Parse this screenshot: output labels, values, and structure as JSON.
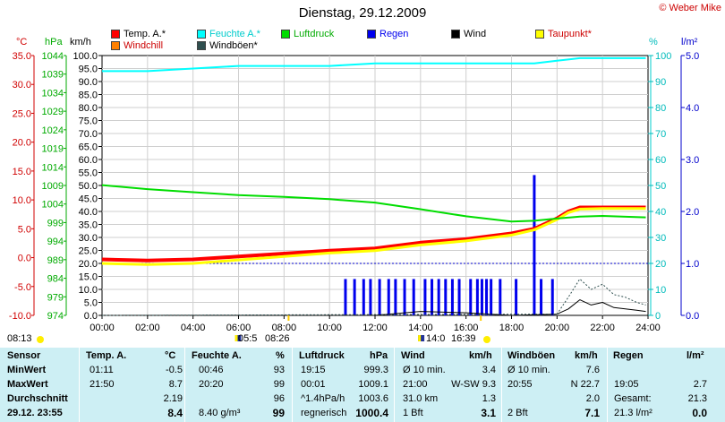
{
  "header": {
    "title": "Dienstag, 29.12.2009",
    "credit": "© Weber Mike"
  },
  "legend": [
    {
      "label": "Temp. A.*",
      "color": "#ff0000"
    },
    {
      "label": "Feuchte A.*",
      "color": "#00ffff"
    },
    {
      "label": "Luftdruck",
      "color": "#00dd00"
    },
    {
      "label": "Regen",
      "color": "#0000ee"
    },
    {
      "label": "Wind",
      "color": "#000000"
    },
    {
      "label": "Taupunkt*",
      "color": "#ffff00"
    },
    {
      "label": "Windchill",
      "color": "#ff8000"
    },
    {
      "label": "Windböen*",
      "color": "#2f4f4f"
    }
  ],
  "units": {
    "temp": "°C",
    "press": "hPa",
    "wind": "km/h",
    "hum": "%",
    "rain": "l/m²"
  },
  "markers": {
    "sunrise": "08:13",
    "sunset": "16:39",
    "moon1": "05:5",
    "moon2": "08:26",
    "moon3": "14:0"
  },
  "chart_data": {
    "type": "line",
    "x_range": [
      "00:00",
      "24:00"
    ],
    "x_ticks": [
      "00:00",
      "02:00",
      "04:00",
      "06:00",
      "08:00",
      "10:00",
      "12:00",
      "14:00",
      "16:00",
      "18:00",
      "20:00",
      "22:00",
      "24:00"
    ],
    "axes": {
      "temp_c": {
        "range": [
          -10,
          35
        ],
        "ticks": [
          "35.0",
          "30.0",
          "25.0",
          "20.0",
          "15.0",
          "10.0",
          "5.0",
          "0.0",
          "-5.0",
          "-10.0"
        ]
      },
      "pressure_hpa": {
        "range": [
          974,
          1044
        ],
        "ticks": [
          "1044",
          "1039",
          "1034",
          "1029",
          "1024",
          "1019",
          "1014",
          "1009",
          "1004",
          "999",
          "994",
          "989",
          "984",
          "979",
          "974"
        ]
      },
      "wind_kmh": {
        "range": [
          0,
          100
        ],
        "ticks": [
          "100.0",
          "95.0",
          "90.0",
          "85.0",
          "80.0",
          "75.0",
          "70.0",
          "65.0",
          "60.0",
          "55.0",
          "50.0",
          "45.0",
          "40.0",
          "35.0",
          "30.0",
          "25.0",
          "20.0",
          "15.0",
          "10.0",
          "5.0",
          "0.0"
        ]
      },
      "humidity_pct": {
        "range": [
          0,
          100
        ],
        "ticks": [
          "100",
          "90",
          "80",
          "70",
          "60",
          "50",
          "40",
          "30",
          "20",
          "10",
          "0"
        ]
      },
      "rain_lm2": {
        "range": [
          0,
          5
        ],
        "ticks": [
          "5.0",
          "4.0",
          "3.0",
          "2.0",
          "1.0",
          "0.0"
        ]
      }
    },
    "series": [
      {
        "name": "Temp. A.*",
        "axis": "temp_c",
        "color": "#ff0000",
        "x": [
          0,
          2,
          4,
          6,
          8,
          10,
          12,
          14,
          16,
          18,
          19,
          20,
          20.5,
          21,
          21.5,
          22,
          23,
          23.9
        ],
        "values": [
          -0.3,
          -0.5,
          -0.3,
          0.2,
          0.7,
          1.2,
          1.6,
          2.6,
          3.2,
          4.2,
          5.0,
          6.8,
          8.0,
          8.7,
          8.7,
          8.7,
          8.7,
          8.7
        ]
      },
      {
        "name": "Taupunkt*",
        "axis": "temp_c",
        "color": "#ffff00",
        "x": [
          0,
          2,
          4,
          6,
          8,
          10,
          12,
          14,
          16,
          18,
          19,
          20,
          20.5,
          21,
          22,
          23,
          23.9
        ],
        "values": [
          -1.0,
          -1.2,
          -1.0,
          -0.4,
          0.2,
          0.8,
          1.2,
          2.2,
          2.9,
          3.9,
          4.8,
          6.6,
          7.8,
          8.4,
          8.5,
          8.5,
          8.5
        ]
      },
      {
        "name": "Feuchte A.*",
        "axis": "humidity_pct",
        "color": "#00ffff",
        "x": [
          0,
          2,
          4,
          6,
          8,
          10,
          12,
          14,
          16,
          18,
          19,
          20,
          21,
          22,
          23.9
        ],
        "values": [
          94,
          94,
          95,
          96,
          96,
          96,
          97,
          97,
          97,
          97,
          97,
          98,
          99,
          99,
          99
        ]
      },
      {
        "name": "Luftdruck",
        "axis": "pressure_hpa",
        "color": "#00dd00",
        "x": [
          0,
          2,
          4,
          6,
          8,
          10,
          12,
          14,
          16,
          18,
          19,
          20,
          21,
          22,
          23.9
        ],
        "values": [
          1009.1,
          1008.0,
          1007.2,
          1006.4,
          1005.9,
          1005.3,
          1004.4,
          1002.6,
          1000.7,
          999.3,
          999.5,
          1000.1,
          1000.6,
          1000.8,
          1000.4
        ]
      },
      {
        "name": "Wind",
        "axis": "wind_kmh",
        "color": "#000000",
        "x": [
          0,
          12,
          14,
          16,
          18,
          20,
          20.5,
          21,
          21.5,
          22,
          22.5,
          23,
          23.5,
          23.9
        ],
        "values": [
          0,
          0,
          1.5,
          1.0,
          0,
          0.5,
          2.5,
          6,
          4,
          5,
          3,
          2.5,
          2,
          1.5
        ]
      },
      {
        "name": "Windböen*",
        "axis": "wind_kmh",
        "color": "#2f4f4f",
        "x": [
          0,
          20,
          20.5,
          21,
          21.5,
          22,
          22.5,
          23,
          23.5,
          23.9
        ],
        "values": [
          0,
          0.5,
          7,
          14,
          10,
          12,
          8,
          7,
          5,
          4
        ]
      },
      {
        "name": "Regen",
        "axis": "rain_lm2",
        "color": "#0000ee",
        "kind": "bars",
        "x": [
          10.7,
          11.1,
          11.5,
          11.8,
          12.2,
          12.6,
          12.9,
          13.3,
          13.7,
          14.2,
          14.5,
          14.8,
          15.1,
          15.4,
          15.7,
          16.2,
          16.5,
          16.7,
          16.9,
          17.1,
          17.5,
          18.2,
          19.0,
          19.3,
          19.8
        ],
        "values": [
          0.7,
          0.7,
          0.7,
          0.7,
          0.7,
          0.7,
          0.7,
          0.7,
          0.7,
          0.7,
          0.7,
          0.7,
          0.7,
          0.7,
          0.7,
          0.7,
          0.7,
          0.7,
          0.7,
          0.7,
          0.7,
          0.7,
          2.7,
          0.7,
          0.7
        ]
      }
    ]
  },
  "table": {
    "headers": [
      "Sensor",
      "Temp. A.",
      "°C",
      "Feuchte A.",
      "%",
      "Luftdruck",
      "hPa",
      "Wind",
      "km/h",
      "Windböen",
      "km/h",
      "Regen",
      "l/m²"
    ],
    "rows": [
      {
        "label": "MinWert",
        "t_time": "01:11",
        "t_val": "-0.5",
        "h_time": "00:46",
        "h_val": "93",
        "p_time": "19:15",
        "p_val": "999.3",
        "w_a": "Ø 10 min.",
        "w_b": "3.4",
        "g_a": "Ø 10 min.",
        "g_b": "7.6",
        "r_a": "",
        "r_b": ""
      },
      {
        "label": "MaxWert",
        "t_time": "21:50",
        "t_val": "8.7",
        "h_time": "20:20",
        "h_val": "99",
        "p_time": "00:01",
        "p_val": "1009.1",
        "w_a": "21:00",
        "w_b": "W-SW 9.3",
        "g_a": "20:55",
        "g_b": "N 22.7",
        "r_a": "19:05",
        "r_b": "2.7"
      },
      {
        "label": "Durchschnitt",
        "t_time": "",
        "t_val": "2.19",
        "h_time": "",
        "h_val": "96",
        "p_time": "^1.4hPa/h",
        "p_val": "1003.6",
        "w_a": "31.0 km",
        "w_b": "1.3",
        "g_a": "",
        "g_b": "2.0",
        "r_a": "Gesamt:",
        "r_b": "21.3"
      },
      {
        "label": "29.12. 23:55",
        "t_time": "",
        "t_val": "8.4",
        "h_time": "8.40 g/m³",
        "h_val": "99",
        "p_time": "regnerisch",
        "p_val": "1000.4",
        "w_a": "1 Bft",
        "w_b": "3.1",
        "g_a": "2 Bft",
        "g_b": "7.1",
        "r_a": "21.3 l/m²",
        "r_b": "0.0"
      }
    ]
  }
}
